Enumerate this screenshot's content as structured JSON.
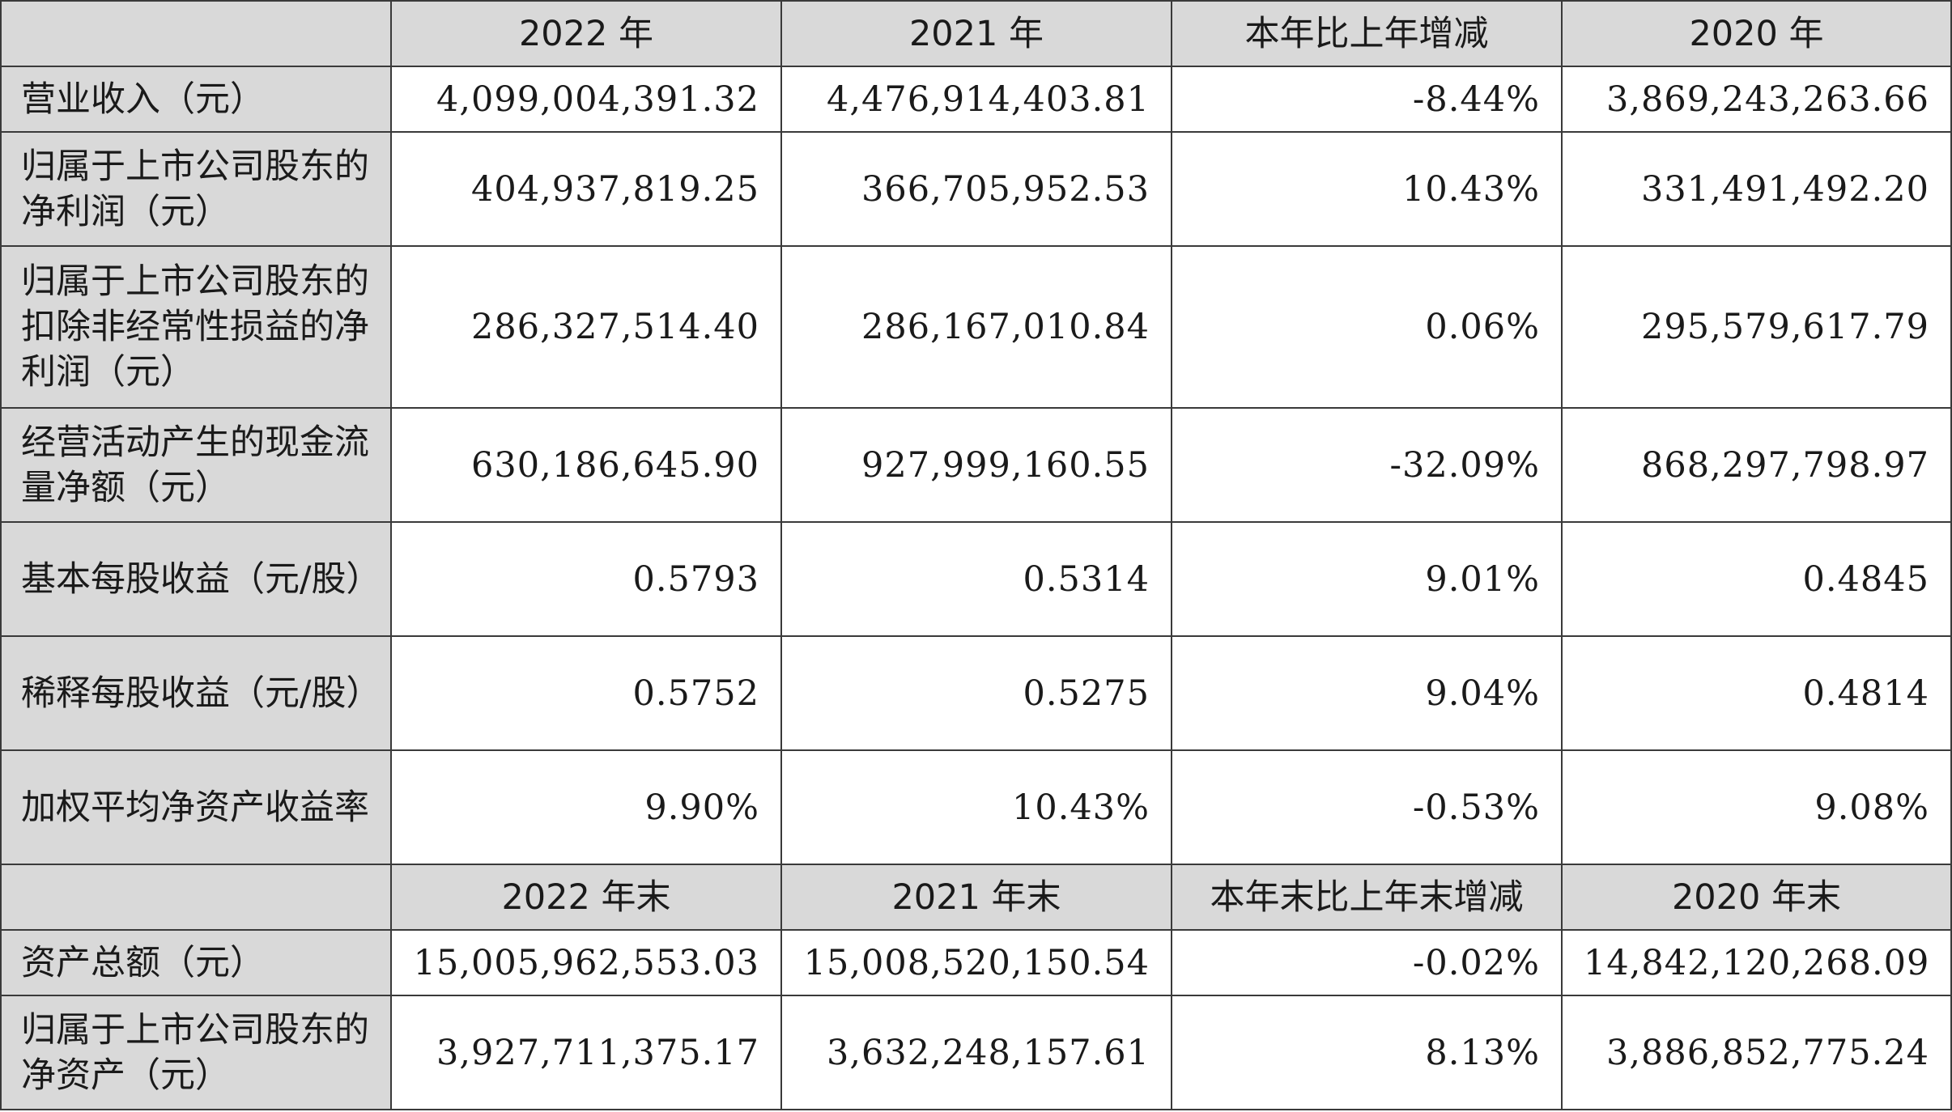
{
  "header_1": {
    "blank": "",
    "col_2022": "2022 年",
    "col_2021": "2021 年",
    "col_change": "本年比上年增减",
    "col_2020": "2020 年"
  },
  "rows_1": [
    {
      "label": "营业收入（元）",
      "v2022": "4,099,004,391.32",
      "v2021": "4,476,914,403.81",
      "change": "-8.44%",
      "v2020": "3,869,243,263.66"
    },
    {
      "label": "归属于上市公司股东的净利润（元）",
      "v2022": "404,937,819.25",
      "v2021": "366,705,952.53",
      "change": "10.43%",
      "v2020": "331,491,492.20"
    },
    {
      "label": "归属于上市公司股东的扣除非经常性损益的净利润（元）",
      "v2022": "286,327,514.40",
      "v2021": "286,167,010.84",
      "change": "0.06%",
      "v2020": "295,579,617.79"
    },
    {
      "label": "经营活动产生的现金流量净额（元）",
      "v2022": "630,186,645.90",
      "v2021": "927,999,160.55",
      "change": "-32.09%",
      "v2020": "868,297,798.97"
    },
    {
      "label": "基本每股收益（元/股）",
      "v2022": "0.5793",
      "v2021": "0.5314",
      "change": "9.01%",
      "v2020": "0.4845"
    },
    {
      "label": "稀释每股收益（元/股）",
      "v2022": "0.5752",
      "v2021": "0.5275",
      "change": "9.04%",
      "v2020": "0.4814"
    },
    {
      "label": "加权平均净资产收益率",
      "v2022": "9.90%",
      "v2021": "10.43%",
      "change": "-0.53%",
      "v2020": "9.08%"
    }
  ],
  "header_2": {
    "blank": "",
    "col_2022": "2022 年末",
    "col_2021": "2021 年末",
    "col_change": "本年末比上年末增减",
    "col_2020": "2020 年末"
  },
  "rows_2": [
    {
      "label": "资产总额（元）",
      "v2022": "15,005,962,553.03",
      "v2021": "15,008,520,150.54",
      "change": "-0.02%",
      "v2020": "14,842,120,268.09"
    },
    {
      "label": "归属于上市公司股东的净资产（元）",
      "v2022": "3,927,711,375.17",
      "v2021": "3,632,248,157.61",
      "change": "8.13%",
      "v2020": "3,886,852,775.24"
    }
  ]
}
